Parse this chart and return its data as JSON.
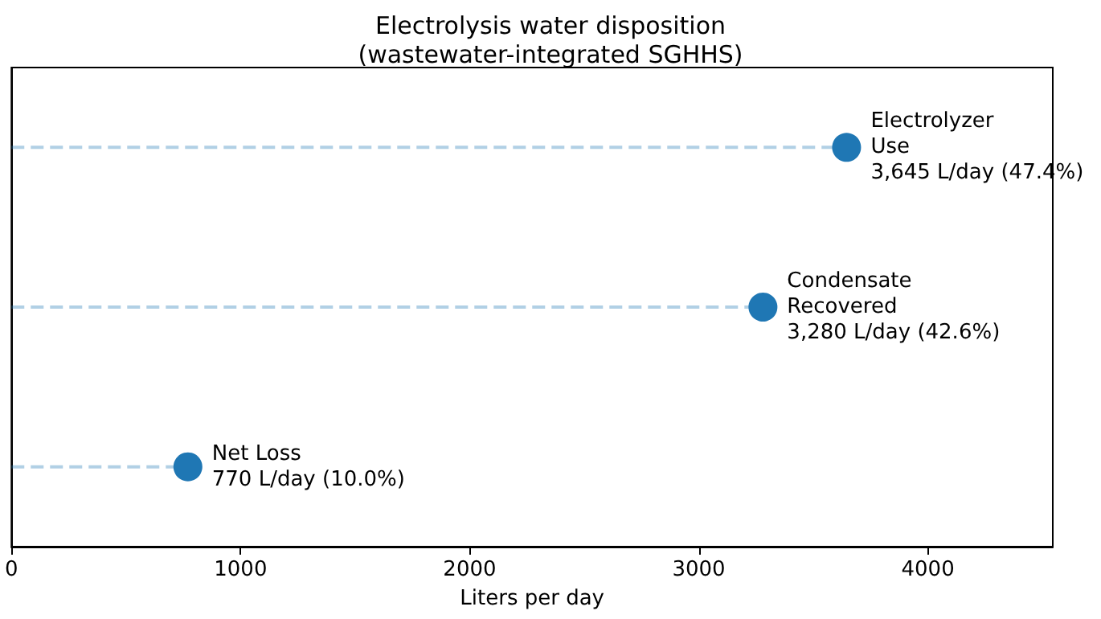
{
  "chart_data": {
    "type": "lollipop",
    "orientation": "horizontal",
    "title": "Electrolysis water disposition\n(wastewater-integrated SGHHS)",
    "xlabel": "Liters per day",
    "categories": [
      null,
      null,
      null
    ],
    "values": [
      3645,
      3280,
      770
    ],
    "value_labels": [
      "Electrolyzer\nUse\n3,645 L/day (47.4%)",
      "Condensate\nRecovered\n3,280 L/day (42.6%)",
      "Net Loss\n770 L/day (10.0%)"
    ],
    "color": "#1f77b4",
    "marker": "circle",
    "line_style": "dashed",
    "xlim": [
      0,
      4545
    ],
    "xticks": [
      0,
      1000,
      2000,
      3000,
      4000
    ]
  }
}
